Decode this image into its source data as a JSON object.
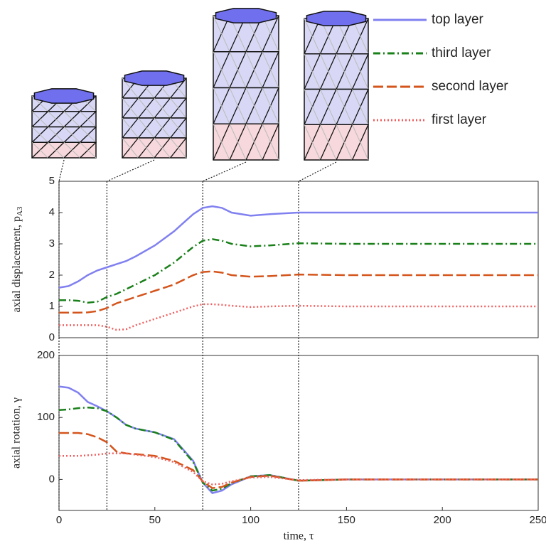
{
  "chart_data": [
    {
      "type": "line",
      "ylabel": "axial displacement, p",
      "ylabel_sub": "A3",
      "x": [
        0,
        5,
        10,
        15,
        20,
        25,
        30,
        35,
        40,
        50,
        60,
        70,
        75,
        80,
        85,
        90,
        100,
        110,
        125,
        150,
        200,
        250
      ],
      "xlim": [
        0,
        250
      ],
      "ylim": [
        0,
        5
      ],
      "yticks": [
        0,
        1,
        2,
        3,
        4,
        5
      ],
      "vlines": [
        0,
        25,
        75,
        125
      ],
      "series": [
        {
          "name": "top layer",
          "color": "#8080f0",
          "style": "solid",
          "values": [
            1.6,
            1.65,
            1.8,
            2.0,
            2.15,
            2.25,
            2.35,
            2.45,
            2.6,
            2.95,
            3.4,
            3.95,
            4.15,
            4.2,
            4.15,
            4.0,
            3.9,
            3.95,
            4.0,
            4.0,
            4.0,
            4.0
          ]
        },
        {
          "name": "third layer",
          "color": "#1a801a",
          "style": "dashdot",
          "values": [
            1.2,
            1.2,
            1.18,
            1.12,
            1.15,
            1.3,
            1.4,
            1.55,
            1.7,
            2.0,
            2.4,
            2.9,
            3.1,
            3.15,
            3.1,
            3.0,
            2.92,
            2.95,
            3.02,
            3.0,
            3.0,
            3.0
          ]
        },
        {
          "name": "second layer",
          "color": "#d4551c",
          "style": "dashed",
          "values": [
            0.8,
            0.8,
            0.8,
            0.81,
            0.85,
            0.95,
            1.1,
            1.2,
            1.3,
            1.5,
            1.7,
            2.0,
            2.1,
            2.12,
            2.08,
            2.0,
            1.95,
            1.97,
            2.02,
            2.0,
            2.0,
            2.0
          ]
        },
        {
          "name": "first layer",
          "color": "#f06060",
          "style": "dotted",
          "values": [
            0.4,
            0.4,
            0.4,
            0.4,
            0.4,
            0.35,
            0.25,
            0.27,
            0.4,
            0.6,
            0.8,
            1.0,
            1.07,
            1.07,
            1.05,
            1.02,
            0.98,
            1.0,
            1.02,
            1.0,
            1.0,
            1.0
          ]
        }
      ]
    },
    {
      "type": "line",
      "ylabel": "axial rotation, γ",
      "xlabel": "time, τ",
      "x": [
        0,
        5,
        10,
        15,
        20,
        25,
        30,
        35,
        40,
        50,
        60,
        70,
        75,
        80,
        85,
        90,
        100,
        110,
        125,
        150,
        200,
        250
      ],
      "xlim": [
        0,
        250
      ],
      "xticks": [
        0,
        50,
        100,
        150,
        200,
        250
      ],
      "ylim": [
        -50,
        200
      ],
      "yticks": [
        0,
        100,
        200
      ],
      "series": [
        {
          "color": "#8080f0",
          "style": "solid",
          "values": [
            150,
            148,
            140,
            125,
            118,
            110,
            100,
            88,
            82,
            76,
            65,
            30,
            -5,
            -22,
            -18,
            -8,
            5,
            7,
            -2,
            0,
            0,
            0
          ]
        },
        {
          "color": "#1a801a",
          "style": "dashdot",
          "values": [
            112,
            113,
            115,
            116,
            115,
            110,
            100,
            88,
            82,
            76,
            64,
            28,
            -5,
            -18,
            -15,
            -6,
            5,
            7,
            -2,
            0,
            0,
            0
          ]
        },
        {
          "color": "#d4551c",
          "style": "dashed",
          "values": [
            75,
            75,
            75,
            73,
            68,
            60,
            45,
            42,
            41,
            38,
            30,
            15,
            -3,
            -14,
            -12,
            -5,
            4,
            6,
            -2,
            0,
            0,
            0
          ]
        },
        {
          "color": "#f06060",
          "style": "dotted",
          "values": [
            38,
            38,
            38,
            39,
            40,
            42,
            42,
            42,
            40,
            36,
            28,
            12,
            -3,
            -8,
            -7,
            -3,
            3,
            4,
            -1,
            0,
            0,
            0
          ]
        }
      ]
    }
  ]
}
